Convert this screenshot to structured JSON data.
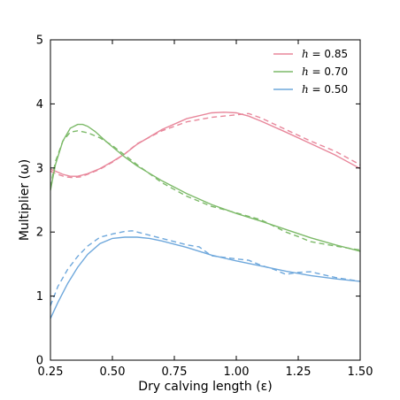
{
  "chart_data": {
    "type": "line",
    "xlabel": "Dry calving length (ε)",
    "ylabel": "Multiplier (ω)",
    "xlim": [
      0.25,
      1.5
    ],
    "ylim": [
      0,
      5
    ],
    "xticks": [
      "0.25",
      "0.50",
      "0.75",
      "1.00",
      "1.25",
      "1.50"
    ],
    "yticks": [
      "0",
      "1",
      "2",
      "3",
      "4",
      "5"
    ],
    "grid": false,
    "legend_position": "top-right",
    "series": [
      {
        "name": "h = 0.85",
        "legend_italic": "h",
        "legend_rest": " = 0.85",
        "color": "#e8879b",
        "solid": {
          "x": [
            0.25,
            0.27,
            0.3,
            0.33,
            0.36,
            0.4,
            0.45,
            0.5,
            0.55,
            0.6,
            0.7,
            0.8,
            0.9,
            0.95,
            1.0,
            1.05,
            1.1,
            1.2,
            1.3,
            1.4,
            1.5
          ],
          "y": [
            2.98,
            2.95,
            2.9,
            2.87,
            2.87,
            2.91,
            2.99,
            3.1,
            3.22,
            3.37,
            3.6,
            3.77,
            3.86,
            3.87,
            3.86,
            3.81,
            3.73,
            3.56,
            3.38,
            3.2,
            2.99
          ]
        },
        "dashed": {
          "x": [
            0.25,
            0.28,
            0.31,
            0.34,
            0.37,
            0.4,
            0.45,
            0.5,
            0.55,
            0.6,
            0.7,
            0.8,
            0.9,
            1.0,
            1.05,
            1.1,
            1.2,
            1.3,
            1.4,
            1.5
          ],
          "y": [
            2.95,
            2.9,
            2.86,
            2.85,
            2.86,
            2.9,
            2.98,
            3.09,
            3.22,
            3.38,
            3.58,
            3.72,
            3.79,
            3.83,
            3.85,
            3.78,
            3.6,
            3.42,
            3.26,
            3.05
          ]
        }
      },
      {
        "name": "h = 0.70",
        "legend_italic": "h",
        "legend_rest": " = 0.70",
        "color": "#7dba69",
        "solid": {
          "x": [
            0.25,
            0.27,
            0.3,
            0.33,
            0.36,
            0.38,
            0.4,
            0.43,
            0.47,
            0.5,
            0.55,
            0.6,
            0.7,
            0.8,
            0.9,
            1.0,
            1.1,
            1.2,
            1.3,
            1.4,
            1.5
          ],
          "y": [
            2.65,
            3.05,
            3.42,
            3.62,
            3.68,
            3.68,
            3.65,
            3.57,
            3.43,
            3.33,
            3.17,
            3.03,
            2.8,
            2.6,
            2.43,
            2.29,
            2.17,
            2.04,
            1.91,
            1.8,
            1.7
          ]
        },
        "dashed": {
          "x": [
            0.25,
            0.27,
            0.3,
            0.33,
            0.36,
            0.4,
            0.45,
            0.5,
            0.55,
            0.6,
            0.7,
            0.8,
            0.9,
            1.0,
            1.1,
            1.2,
            1.25,
            1.3,
            1.4,
            1.5
          ],
          "y": [
            2.7,
            3.1,
            3.42,
            3.56,
            3.58,
            3.55,
            3.47,
            3.35,
            3.2,
            3.05,
            2.77,
            2.56,
            2.4,
            2.3,
            2.19,
            2.0,
            1.93,
            1.85,
            1.78,
            1.72
          ]
        }
      },
      {
        "name": "h = 0.50",
        "legend_italic": "h",
        "legend_rest": " = 0.50",
        "color": "#6fa8dc",
        "solid": {
          "x": [
            0.25,
            0.28,
            0.32,
            0.36,
            0.4,
            0.45,
            0.5,
            0.55,
            0.6,
            0.65,
            0.7,
            0.8,
            0.9,
            1.0,
            1.1,
            1.2,
            1.3,
            1.4,
            1.5
          ],
          "y": [
            0.65,
            0.9,
            1.2,
            1.45,
            1.65,
            1.82,
            1.9,
            1.92,
            1.92,
            1.9,
            1.86,
            1.76,
            1.64,
            1.55,
            1.47,
            1.39,
            1.32,
            1.27,
            1.23
          ]
        },
        "dashed": {
          "x": [
            0.25,
            0.28,
            0.32,
            0.36,
            0.4,
            0.45,
            0.5,
            0.55,
            0.58,
            0.62,
            0.7,
            0.8,
            0.85,
            0.9,
            1.0,
            1.05,
            1.1,
            1.15,
            1.2,
            1.25,
            1.3,
            1.4,
            1.5
          ],
          "y": [
            0.85,
            1.15,
            1.42,
            1.62,
            1.78,
            1.92,
            1.97,
            2.01,
            2.02,
            1.98,
            1.9,
            1.8,
            1.77,
            1.63,
            1.58,
            1.56,
            1.48,
            1.42,
            1.34,
            1.37,
            1.38,
            1.29,
            1.23
          ]
        }
      }
    ]
  }
}
